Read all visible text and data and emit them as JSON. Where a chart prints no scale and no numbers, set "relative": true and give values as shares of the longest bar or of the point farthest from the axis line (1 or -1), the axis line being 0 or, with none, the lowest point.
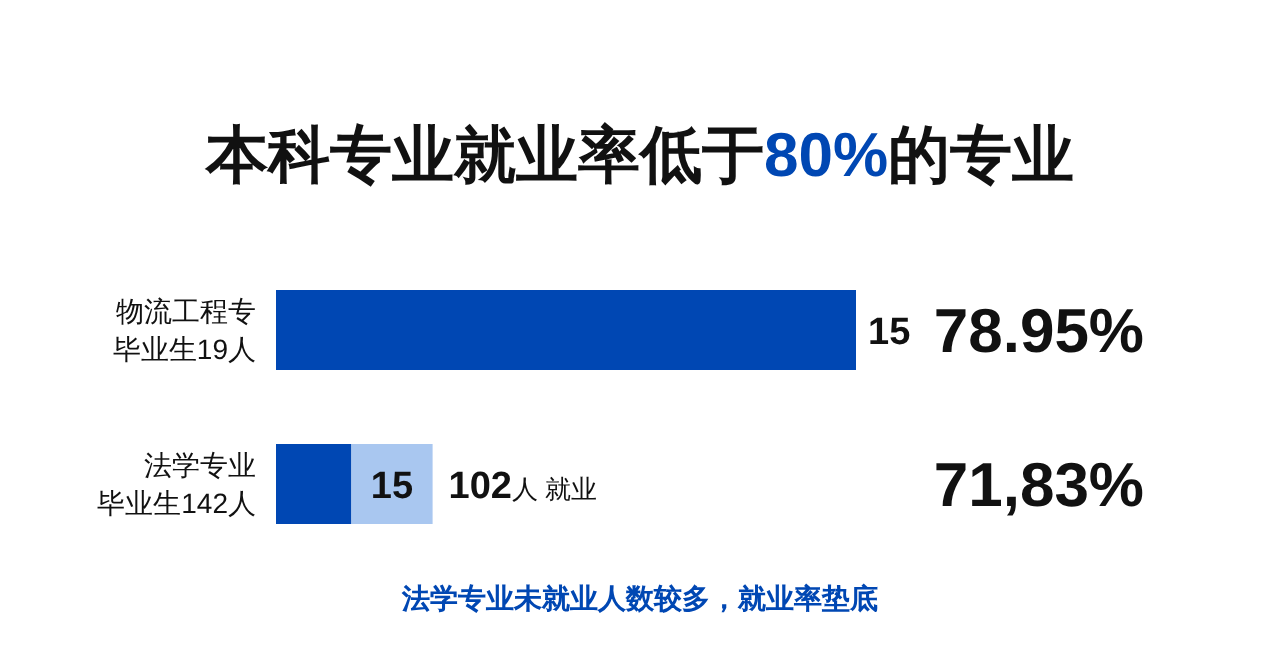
{
  "chart_data": {
    "type": "bar",
    "orientation": "horizontal",
    "stacked": true,
    "relative": true,
    "tick_labels": "y",
    "title": "本科专业就业率低于80%的专业",
    "categories": [
      "物流工程专毕业生19人",
      "法学专业毕业生142人"
    ],
    "series": [
      {
        "color": "#0047b3",
        "values": [
          1,
          0.13
        ]
      },
      {
        "color": "#a9c7f0",
        "values": [
          null,
          0.14
        ]
      }
    ],
    "annotations": [
      "15",
      "15",
      "102人 就业",
      "78.95%",
      "71,83%",
      "法学专业未就业人数较多，就业率垫底"
    ]
  }
}
